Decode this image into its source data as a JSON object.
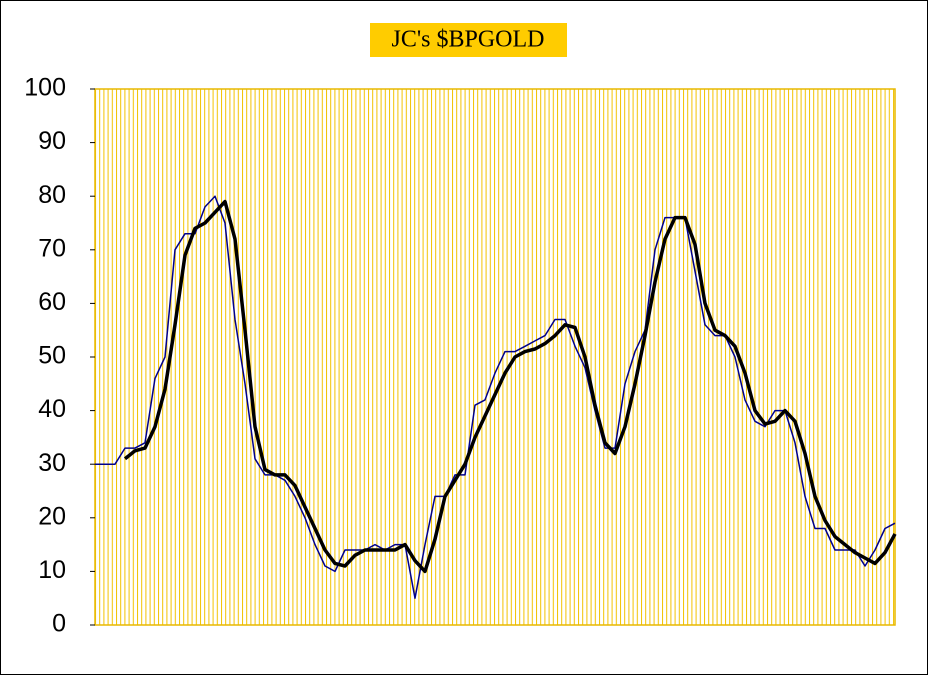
{
  "chart_data": {
    "type": "line",
    "title": "JC's $BPGOLD",
    "ylim": [
      0,
      100
    ],
    "yticks": [
      0,
      10,
      20,
      30,
      40,
      50,
      60,
      70,
      80,
      90,
      100
    ],
    "grid": true,
    "series": [
      {
        "color": "#00008b",
        "values": [
          30,
          30,
          30,
          33,
          33,
          34,
          46,
          50,
          70,
          73,
          73,
          78,
          80,
          75,
          57,
          45,
          31,
          28,
          28,
          27,
          24,
          20,
          15,
          11,
          10,
          14,
          14,
          14,
          15,
          14,
          15,
          15,
          5,
          15,
          24,
          24,
          28,
          28,
          41,
          42,
          47,
          51,
          51,
          52,
          53,
          54,
          57,
          57,
          52,
          48,
          40,
          33,
          33,
          45,
          51,
          55,
          70,
          76,
          76,
          76,
          66,
          56,
          54,
          54,
          50,
          42,
          38,
          37,
          40,
          40,
          34,
          24,
          18,
          18,
          14,
          14,
          14,
          11,
          14,
          18,
          19
        ]
      },
      {
        "color": "#000000",
        "values": [
          null,
          null,
          null,
          31,
          32.5,
          33,
          37,
          44,
          56,
          69,
          74,
          75,
          77,
          79,
          72,
          55,
          37,
          29,
          28,
          28,
          26,
          22,
          18,
          14,
          11.5,
          11,
          13,
          14,
          14,
          14,
          14,
          15,
          12,
          10,
          16,
          24,
          27,
          30,
          35,
          39,
          43,
          47,
          50,
          51,
          51.5,
          52.5,
          54,
          56,
          55.5,
          50,
          41,
          34,
          32,
          37,
          45,
          54,
          64,
          72,
          76,
          76,
          71,
          60,
          55,
          54,
          52,
          47,
          40,
          37.5,
          38,
          40,
          38,
          32,
          24,
          19.5,
          16.5,
          15,
          13.5,
          12.5,
          11.5,
          13.5,
          17
        ]
      }
    ]
  }
}
